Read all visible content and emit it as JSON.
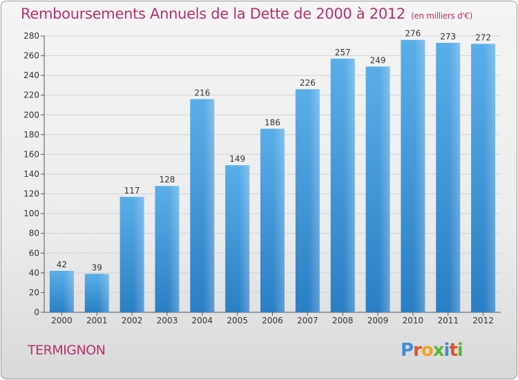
{
  "header": {
    "title": "Remboursements Annuels de la Dette de 2000 à 2012",
    "unit": "(en milliers d'€)"
  },
  "footer": {
    "town": "TERMIGNON",
    "logo_text": "Proxiti"
  },
  "colors": {
    "accent": "#b5326e",
    "bar_top": "#5aaee8",
    "bar_bottom": "#2a7fc4"
  },
  "chart_data": {
    "type": "bar",
    "title": "Remboursements Annuels de la Dette de 2000 à 2012",
    "subtitle": "(en milliers d'€)",
    "categories": [
      "2000",
      "2001",
      "2002",
      "2003",
      "2004",
      "2005",
      "2006",
      "2007",
      "2008",
      "2009",
      "2010",
      "2011",
      "2012"
    ],
    "values": [
      42,
      39,
      117,
      128,
      216,
      149,
      186,
      226,
      257,
      249,
      276,
      273,
      272
    ],
    "data_labels": [
      "42",
      "39",
      "117",
      "128",
      "216",
      "149",
      "186",
      "226",
      "257",
      "249",
      "276",
      "273",
      "272"
    ],
    "ylim": [
      0,
      280
    ],
    "yticks": [
      0,
      20,
      40,
      60,
      80,
      100,
      120,
      140,
      160,
      180,
      200,
      220,
      240,
      260,
      280
    ],
    "xlabel": "",
    "ylabel": "",
    "grid": true
  }
}
